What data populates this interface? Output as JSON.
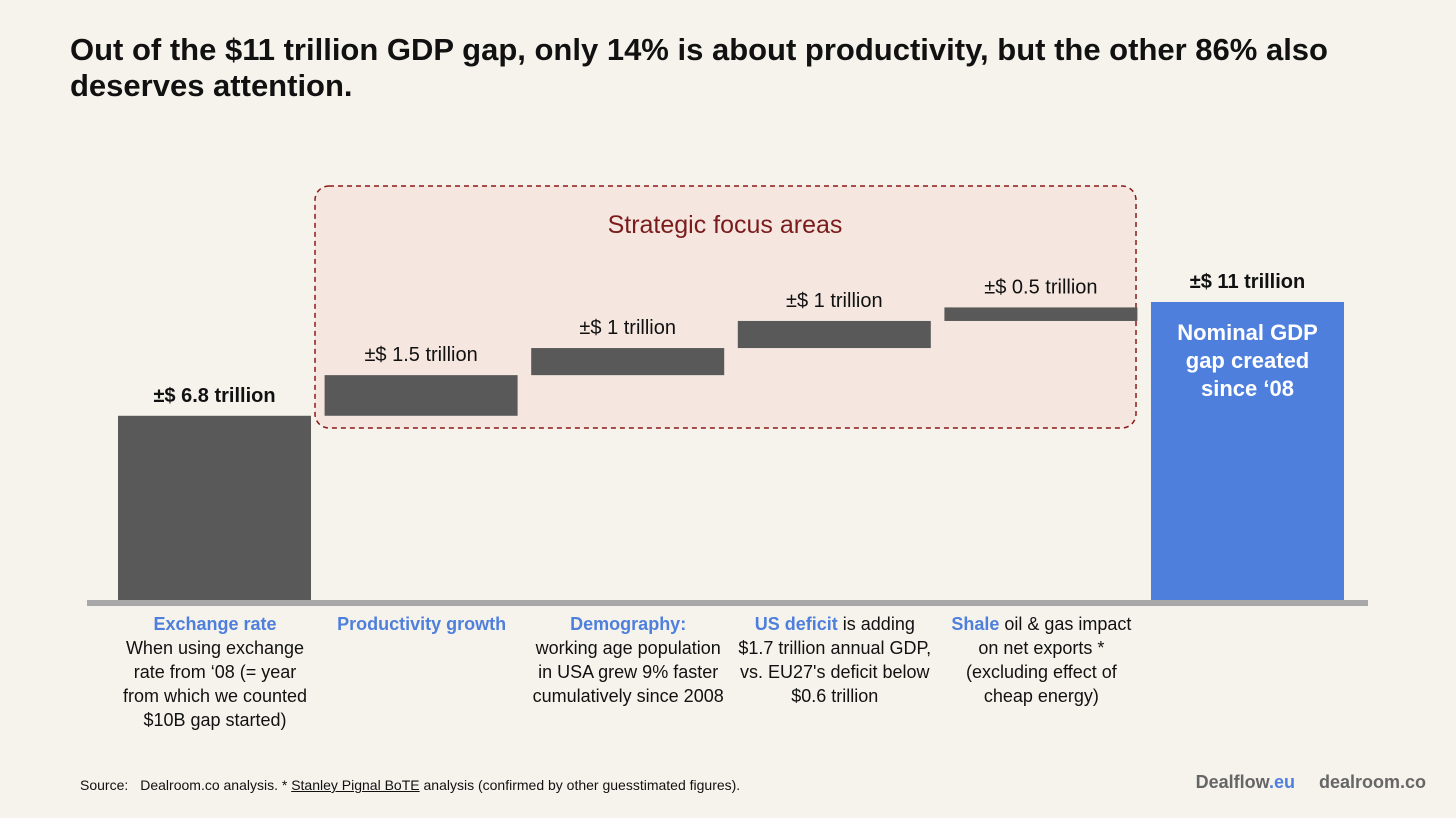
{
  "title": "Out of the $11 trillion GDP gap, only 14% is about productivity, but the other 86% also deserves attention.",
  "chart_data": {
    "type": "bar",
    "subtype": "waterfall",
    "focus_box_label": "Strategic focus areas",
    "ylim": [
      0,
      11
    ],
    "colors": {
      "steps": "#595959",
      "total": "#4f7fdc",
      "focus_border": "#8b1a1a",
      "focus_fill": "#f5e6df",
      "focus_text": "#7a1c1c",
      "baseline": "#a8a8a8",
      "highlight": "#4f7fdc"
    },
    "bars": [
      {
        "kind": "increase",
        "start": 0,
        "value": 6.8,
        "label": "±$ 6.8 trillion"
      },
      {
        "kind": "increase",
        "start": 6.8,
        "value": 1.5,
        "label": "±$ 1.5 trillion"
      },
      {
        "kind": "increase",
        "start": 8.3,
        "value": 1,
        "label": "±$ 1 trillion"
      },
      {
        "kind": "increase",
        "start": 9.3,
        "value": 1,
        "label": "±$ 1 trillion"
      },
      {
        "kind": "increase",
        "start": 10.3,
        "value": 0.5,
        "label": "±$ 0.5 trillion"
      },
      {
        "kind": "total",
        "start": 0,
        "value": 11,
        "label": "±$ 11 trillion",
        "inner_label": "Nominal GDP gap created since ‘08"
      }
    ],
    "categories": [
      {
        "highlight": "Exchange rate",
        "text": "When using exchange rate from ‘08 (= year from which we counted $10B gap started)",
        "break_after_highlight": true
      },
      {
        "highlight": "Productivity growth",
        "text": "",
        "break_after_highlight": true
      },
      {
        "highlight": "Demography:",
        "text": "working age population in USA grew 9% faster cumulatively since 2008",
        "break_after_highlight": true
      },
      {
        "highlight": "US deficit",
        "text": "is adding $1.7 trillion annual GDP, vs.  EU27's deficit below $0.6 trillion",
        "break_after_highlight": false
      },
      {
        "highlight": "Shale",
        "text": "oil & gas impact on net exports * (excluding effect of cheap energy)",
        "break_after_highlight": false
      },
      {
        "highlight": "",
        "text": "",
        "break_after_highlight": false
      }
    ]
  },
  "footer": {
    "source_label": "Source:",
    "source_pre": "Dealroom.co analysis. * ",
    "source_link": "Stanley Pignal BoTE",
    "source_post": " analysis (confirmed by other guesstimated figures)."
  },
  "logos": {
    "dealflow": "Dealflow",
    "dealflow_suffix": ".eu",
    "dealroom": "dealroom.co"
  }
}
